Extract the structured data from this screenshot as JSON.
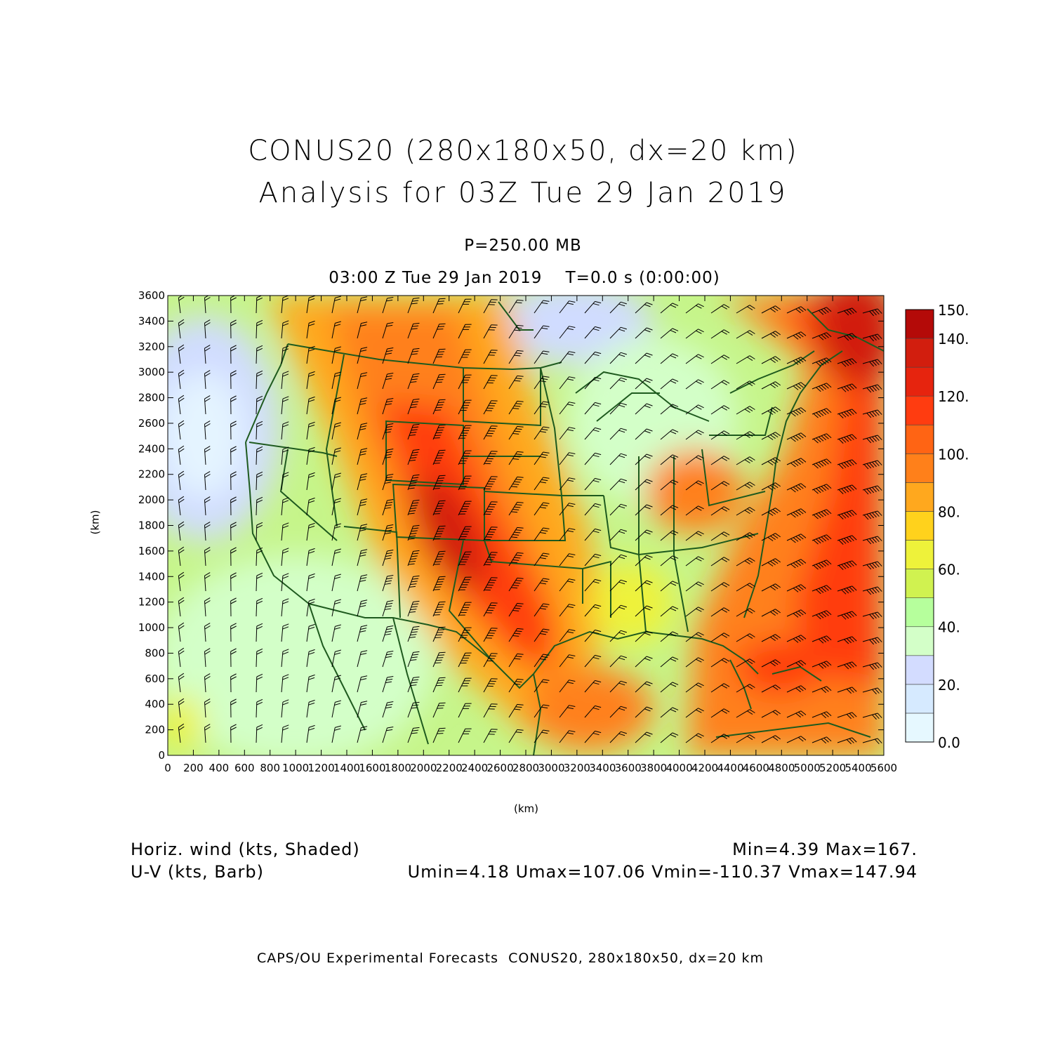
{
  "header": {
    "title_line1": "CONUS20 (280x180x50, dx=20 km)",
    "title_line2": "Analysis for 03Z Tue 29 Jan 2019",
    "level": "P=250.00 MB",
    "time": "03:00 Z Tue 29 Jan 2019    T=0.0 s (0:00:00)"
  },
  "axes": {
    "x_label": "(km)",
    "y_label": "(km)",
    "x_ticks": [
      "0",
      "200",
      "400",
      "600",
      "800",
      "1000",
      "1200",
      "1400",
      "1600",
      "1800",
      "2000",
      "2200",
      "2400",
      "2600",
      "2800",
      "3000",
      "3200",
      "3400",
      "3600",
      "3800",
      "4000",
      "4200",
      "4400",
      "4600",
      "4800",
      "5000",
      "5200",
      "5400",
      "5600"
    ],
    "y_ticks": [
      "0",
      "200",
      "400",
      "600",
      "800",
      "1000",
      "1200",
      "1400",
      "1600",
      "1800",
      "2000",
      "2200",
      "2400",
      "2600",
      "2800",
      "3000",
      "3200",
      "3400",
      "3600"
    ],
    "x_range_km": [
      0,
      5600
    ],
    "y_range_km": [
      0,
      3600
    ]
  },
  "colorbar": {
    "labels": [
      "0.0",
      "20.",
      "40.",
      "60.",
      "80.",
      "100.",
      "120.",
      "140.",
      "150."
    ],
    "colors": [
      "#e6f8ff",
      "#d6eaff",
      "#d3dcff",
      "#d3ffc8",
      "#b6ff9c",
      "#d0f250",
      "#eef23a",
      "#ffd21c",
      "#ffa81e",
      "#ff801a",
      "#ff6414",
      "#ff3c10",
      "#e6240e",
      "#d21e0e",
      "#b40a08"
    ]
  },
  "colors": {
    "map_border": "#1e5a1e",
    "barbs": "#000000"
  },
  "legend": {
    "var1": "Horiz. wind (kts, Shaded)",
    "var2": "U-V (kts, Barb)",
    "stat1": "Min=4.39 Max=167.",
    "stat2": "Umin=4.18 Umax=107.06 Vmin=-110.37 Vmax=147.94"
  },
  "footer": "CAPS/OU Experimental Forecasts  CONUS20, 280x180x50, dx=20 km"
}
